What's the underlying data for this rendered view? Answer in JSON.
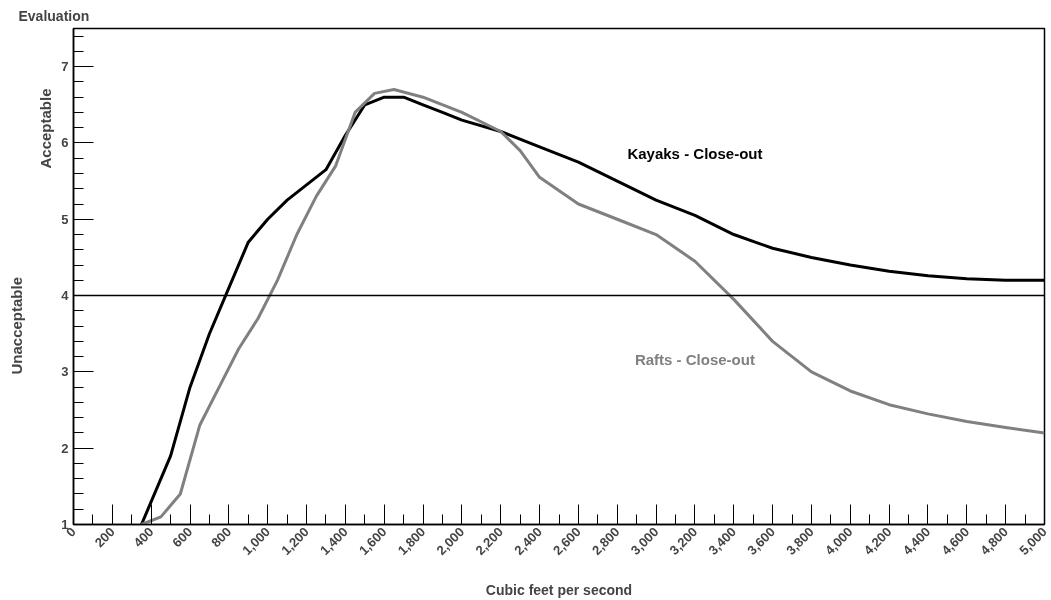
{
  "chart_data": {
    "type": "line",
    "ylabel": "Evaluation",
    "xlabel": "Cubic feet per second",
    "annotations": [
      "Acceptable",
      "Unacceptable"
    ],
    "xlim": [
      0,
      5000
    ],
    "ylim": [
      1,
      7.5
    ],
    "xticks": [
      {
        "value": 0,
        "label": "0"
      },
      {
        "value": 200,
        "label": "200"
      },
      {
        "value": 400,
        "label": "400"
      },
      {
        "value": 600,
        "label": "600"
      },
      {
        "value": 800,
        "label": "800"
      },
      {
        "value": 1000,
        "label": "1,000"
      },
      {
        "value": 1200,
        "label": "1,200"
      },
      {
        "value": 1400,
        "label": "1,400"
      },
      {
        "value": 1600,
        "label": "1,600"
      },
      {
        "value": 1800,
        "label": "1,800"
      },
      {
        "value": 2000,
        "label": "2,000"
      },
      {
        "value": 2200,
        "label": "2,200"
      },
      {
        "value": 2400,
        "label": "2,400"
      },
      {
        "value": 2600,
        "label": "2,600"
      },
      {
        "value": 2800,
        "label": "2,800"
      },
      {
        "value": 3000,
        "label": "3,000"
      },
      {
        "value": 3200,
        "label": "3,200"
      },
      {
        "value": 3400,
        "label": "3,400"
      },
      {
        "value": 3600,
        "label": "3,600"
      },
      {
        "value": 3800,
        "label": "3,800"
      },
      {
        "value": 4000,
        "label": "4,000"
      },
      {
        "value": 4200,
        "label": "4,200"
      },
      {
        "value": 4400,
        "label": "4,400"
      },
      {
        "value": 4600,
        "label": "4,600"
      },
      {
        "value": 4800,
        "label": "4,800"
      },
      {
        "value": 5000,
        "label": "5,000"
      }
    ],
    "yticks": [
      1,
      2,
      3,
      4,
      5,
      6,
      7
    ],
    "ref_lines": [
      {
        "axis": "y",
        "value": 4,
        "color": "#000000"
      }
    ],
    "grid": false,
    "legend": false,
    "marker": "none",
    "line_style": "solid",
    "series": [
      {
        "name": "Kayaks - Close-out",
        "color": "#000000",
        "x": [
          350,
          500,
          600,
          700,
          800,
          900,
          1000,
          1100,
          1200,
          1300,
          1400,
          1500,
          1600,
          1700,
          1800,
          1900,
          2000,
          2200,
          2400,
          2600,
          2800,
          3000,
          3200,
          3400,
          3600,
          3800,
          4000,
          4200,
          4400,
          4600,
          4800,
          5000
        ],
        "values": [
          1,
          1.9,
          2.8,
          3.5,
          4.1,
          4.7,
          5.0,
          5.25,
          5.45,
          5.65,
          6.1,
          6.5,
          6.6,
          6.6,
          6.5,
          6.4,
          6.3,
          6.15,
          5.95,
          5.75,
          5.5,
          5.25,
          5.05,
          4.8,
          4.62,
          4.5,
          4.4,
          4.32,
          4.26,
          4.22,
          4.2,
          4.2
        ]
      },
      {
        "name": "Rafts - Close-out",
        "color": "#808080",
        "x": [
          350,
          450,
          550,
          650,
          750,
          850,
          950,
          1050,
          1150,
          1250,
          1350,
          1450,
          1550,
          1650,
          1800,
          2000,
          2200,
          2300,
          2400,
          2600,
          2800,
          3000,
          3200,
          3400,
          3600,
          3800,
          4000,
          4200,
          4400,
          4600,
          4800,
          5000
        ],
        "values": [
          1,
          1.1,
          1.4,
          2.3,
          2.8,
          3.3,
          3.7,
          4.2,
          4.8,
          5.3,
          5.7,
          6.4,
          6.65,
          6.7,
          6.6,
          6.4,
          6.15,
          5.9,
          5.55,
          5.2,
          5.0,
          4.8,
          4.45,
          3.95,
          3.4,
          3.0,
          2.75,
          2.57,
          2.45,
          2.35,
          2.27,
          2.2
        ]
      }
    ]
  }
}
